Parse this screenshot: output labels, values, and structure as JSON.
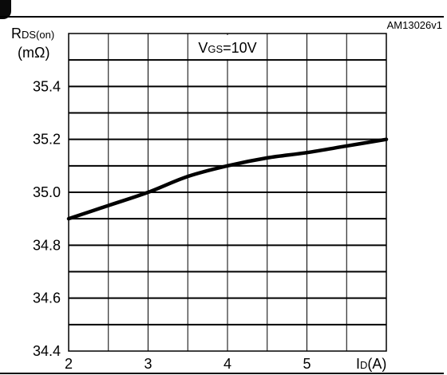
{
  "figure_id": "AM13026v1",
  "chart_data": {
    "type": "line",
    "condition_label": {
      "main": "V",
      "sub": "GS",
      "value": "=10V"
    },
    "ylabel": {
      "main": "R",
      "sub": "DS(on)",
      "unit": "(mΩ)"
    },
    "xlabel": {
      "main": "I",
      "sub": "D",
      "unit": "(A)"
    },
    "xlim": [
      2,
      6
    ],
    "ylim": [
      34.4,
      35.6
    ],
    "x_ticks": [
      2,
      3,
      4,
      5
    ],
    "y_ticks": [
      "34.4",
      "34.6",
      "34.8",
      "35.0",
      "35.2",
      "35.4"
    ],
    "grid": true,
    "series": [
      {
        "x": [
          2.0,
          2.5,
          3.0,
          3.5,
          4.0,
          4.5,
          5.0,
          5.5,
          6.0
        ],
        "y": [
          34.9,
          34.95,
          35.0,
          35.06,
          35.1,
          35.13,
          35.15,
          35.175,
          35.2
        ],
        "color": "#000000"
      }
    ]
  }
}
